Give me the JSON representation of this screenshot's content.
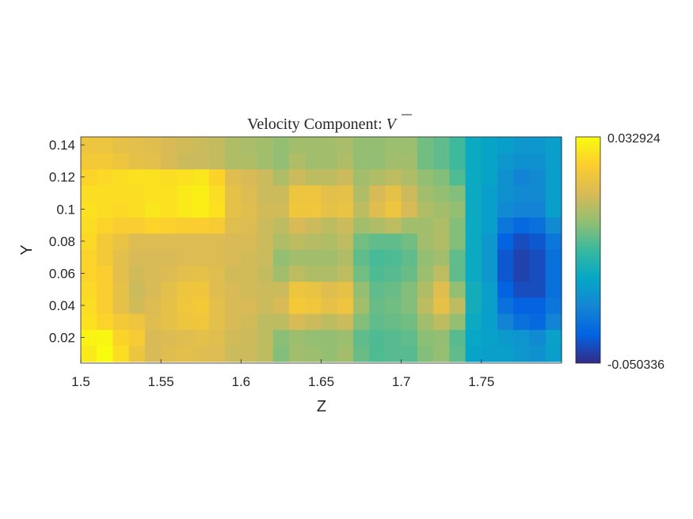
{
  "chart_data": {
    "type": "heatmap",
    "title": "Velocity Component: ",
    "title_symbol": "V",
    "xlabel": "Z",
    "ylabel": "Y",
    "xlim": [
      1.5,
      1.8
    ],
    "ylim": [
      0.004,
      0.145
    ],
    "xticks": [
      1.5,
      1.55,
      1.6,
      1.65,
      1.7,
      1.75
    ],
    "xtick_labels": [
      "1.5",
      "1.55",
      "1.6",
      "1.65",
      "1.7",
      "1.75"
    ],
    "yticks": [
      0.02,
      0.04,
      0.06,
      0.08,
      0.1,
      0.12,
      0.14
    ],
    "ytick_labels": [
      "0.02",
      "0.04",
      "0.06",
      "0.08",
      "0.1",
      "0.12",
      "0.14"
    ],
    "colorbar": {
      "min": -0.050336,
      "max": 0.032924,
      "min_label": "-0.050336",
      "max_label": "0.032924"
    },
    "colormap": [
      "#352a87",
      "#0363e1",
      "#1485d4",
      "#06a7c6",
      "#38b99e",
      "#92bf73",
      "#d9ba56",
      "#fcce2e",
      "#f9fb0e"
    ],
    "column_z": [
      1.505,
      1.515,
      1.525,
      1.535,
      1.545,
      1.555,
      1.565,
      1.575,
      1.585,
      1.595,
      1.605,
      1.615,
      1.625,
      1.635,
      1.645,
      1.655,
      1.665,
      1.675,
      1.685,
      1.695,
      1.705,
      1.715,
      1.725,
      1.735,
      1.745,
      1.755,
      1.765,
      1.775,
      1.785,
      1.795
    ],
    "row_y": [
      0.01,
      0.02,
      0.03,
      0.04,
      0.05,
      0.06,
      0.07,
      0.08,
      0.09,
      0.1,
      0.11,
      0.12,
      0.13,
      0.14
    ],
    "values": [
      [
        0.029,
        0.033,
        0.026,
        0.018,
        0.012,
        0.014,
        0.015,
        0.014,
        0.013,
        0.01,
        0.01,
        0.008,
        0.0,
        0.004,
        0.003,
        0.002,
        0.004,
        -0.003,
        -0.006,
        -0.005,
        -0.005,
        0.0,
        0.002,
        -0.004,
        -0.02,
        -0.022,
        -0.022,
        -0.024,
        -0.026,
        -0.022
      ],
      [
        0.031,
        0.032,
        0.024,
        0.021,
        0.012,
        0.013,
        0.014,
        0.015,
        0.014,
        0.011,
        0.01,
        0.008,
        0.001,
        0.003,
        0.002,
        0.002,
        0.003,
        -0.004,
        -0.006,
        -0.005,
        -0.004,
        0.001,
        0.002,
        -0.005,
        -0.019,
        -0.021,
        -0.023,
        -0.025,
        -0.028,
        -0.021
      ],
      [
        0.027,
        0.024,
        0.02,
        0.018,
        0.014,
        0.016,
        0.018,
        0.019,
        0.015,
        0.012,
        0.011,
        0.008,
        0.008,
        0.012,
        0.01,
        0.008,
        0.01,
        0.0,
        -0.004,
        -0.003,
        -0.002,
        0.004,
        0.008,
        0.002,
        -0.018,
        -0.022,
        -0.03,
        -0.036,
        -0.038,
        -0.03
      ],
      [
        0.026,
        0.022,
        0.016,
        0.011,
        0.013,
        0.016,
        0.019,
        0.02,
        0.015,
        0.012,
        0.012,
        0.01,
        0.012,
        0.02,
        0.019,
        0.016,
        0.018,
        0.004,
        -0.003,
        -0.002,
        0.0,
        0.008,
        0.016,
        0.008,
        -0.016,
        -0.022,
        -0.036,
        -0.04,
        -0.04,
        -0.034
      ],
      [
        0.025,
        0.022,
        0.016,
        0.01,
        0.012,
        0.015,
        0.018,
        0.019,
        0.014,
        0.012,
        0.011,
        0.01,
        0.01,
        0.018,
        0.017,
        0.014,
        0.016,
        0.002,
        -0.004,
        -0.003,
        0.0,
        0.006,
        0.014,
        0.002,
        -0.016,
        -0.022,
        -0.04,
        -0.044,
        -0.044,
        -0.036
      ],
      [
        0.024,
        0.022,
        0.015,
        0.011,
        0.012,
        0.013,
        0.015,
        0.016,
        0.014,
        0.011,
        0.011,
        0.009,
        0.004,
        0.008,
        0.006,
        0.006,
        0.008,
        -0.002,
        -0.006,
        -0.005,
        -0.003,
        0.003,
        0.008,
        -0.004,
        -0.018,
        -0.024,
        -0.042,
        -0.046,
        -0.044,
        -0.036
      ],
      [
        0.024,
        0.02,
        0.015,
        0.012,
        0.012,
        0.012,
        0.013,
        0.013,
        0.013,
        0.012,
        0.011,
        0.01,
        0.002,
        0.004,
        0.004,
        0.004,
        0.006,
        -0.004,
        -0.007,
        -0.006,
        -0.004,
        0.002,
        0.004,
        -0.004,
        -0.018,
        -0.024,
        -0.042,
        -0.046,
        -0.044,
        -0.036
      ],
      [
        0.025,
        0.02,
        0.017,
        0.013,
        0.013,
        0.013,
        0.013,
        0.013,
        0.013,
        0.012,
        0.012,
        0.01,
        0.006,
        0.008,
        0.007,
        0.006,
        0.008,
        -0.002,
        -0.004,
        -0.004,
        -0.002,
        0.004,
        0.006,
        0.0,
        -0.018,
        -0.024,
        -0.04,
        -0.044,
        -0.042,
        -0.034
      ],
      [
        0.026,
        0.024,
        0.022,
        0.022,
        0.024,
        0.023,
        0.022,
        0.022,
        0.021,
        0.014,
        0.013,
        0.01,
        0.008,
        0.012,
        0.01,
        0.008,
        0.01,
        0.004,
        0.006,
        0.008,
        0.004,
        0.004,
        0.006,
        0.0,
        -0.018,
        -0.022,
        -0.034,
        -0.038,
        -0.036,
        -0.028
      ],
      [
        0.027,
        0.026,
        0.025,
        0.026,
        0.028,
        0.027,
        0.029,
        0.03,
        0.027,
        0.016,
        0.014,
        0.011,
        0.011,
        0.019,
        0.019,
        0.016,
        0.017,
        0.008,
        0.014,
        0.018,
        0.012,
        0.006,
        0.004,
        0.002,
        -0.018,
        -0.022,
        -0.028,
        -0.03,
        -0.03,
        -0.022
      ],
      [
        0.026,
        0.026,
        0.026,
        0.026,
        0.027,
        0.027,
        0.029,
        0.03,
        0.026,
        0.016,
        0.013,
        0.01,
        0.01,
        0.018,
        0.018,
        0.015,
        0.016,
        0.006,
        0.012,
        0.016,
        0.01,
        0.004,
        0.002,
        0.0,
        -0.018,
        -0.022,
        -0.026,
        -0.028,
        -0.028,
        -0.022
      ],
      [
        0.024,
        0.025,
        0.026,
        0.027,
        0.027,
        0.026,
        0.027,
        0.028,
        0.024,
        0.014,
        0.012,
        0.01,
        0.006,
        0.01,
        0.008,
        0.008,
        0.01,
        0.004,
        0.006,
        0.008,
        0.006,
        0.002,
        0.0,
        -0.006,
        -0.018,
        -0.02,
        -0.026,
        -0.03,
        -0.028,
        -0.022
      ],
      [
        0.02,
        0.02,
        0.018,
        0.016,
        0.015,
        0.012,
        0.01,
        0.01,
        0.009,
        0.006,
        0.006,
        0.004,
        0.002,
        0.006,
        0.004,
        0.004,
        0.006,
        0.002,
        0.002,
        0.004,
        0.004,
        -0.002,
        -0.004,
        -0.008,
        -0.018,
        -0.02,
        -0.024,
        -0.026,
        -0.026,
        -0.022
      ],
      [
        0.018,
        0.018,
        0.016,
        0.015,
        0.014,
        0.012,
        0.011,
        0.01,
        0.009,
        0.006,
        0.005,
        0.004,
        0.002,
        0.004,
        0.004,
        0.004,
        0.005,
        0.002,
        0.002,
        0.003,
        0.003,
        -0.002,
        -0.004,
        -0.008,
        -0.018,
        -0.02,
        -0.022,
        -0.024,
        -0.024,
        -0.022
      ]
    ]
  }
}
